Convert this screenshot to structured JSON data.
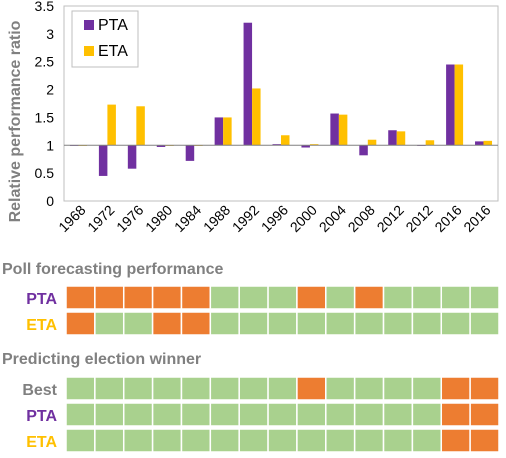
{
  "colors": {
    "pta": "#7030A0",
    "eta": "#FFC000",
    "hit": "#A9D18E",
    "miss": "#ED7D31",
    "best_label": "#808080",
    "section_title": "#808080"
  },
  "chart_data": {
    "type": "bar",
    "ylabel": "Relative performance ratio",
    "ylim": [
      0,
      3.5
    ],
    "baseline": 1,
    "yticks": [
      "0",
      "0.5",
      "1",
      "1.5",
      "2",
      "2.5",
      "3",
      "3.5"
    ],
    "ytick_values": [
      0,
      0.5,
      1,
      1.5,
      2,
      2.5,
      3,
      3.5
    ],
    "categories": [
      "1968",
      "1972",
      "1976",
      "1980",
      "1984",
      "1988",
      "1992",
      "1996",
      "2000",
      "2004",
      "2008",
      "2012",
      "2012",
      "2016",
      "2016"
    ],
    "legend_position": "top-left",
    "series": [
      {
        "name": "PTA",
        "values": [
          1.0,
          0.45,
          0.58,
          0.97,
          0.72,
          1.5,
          3.2,
          1.02,
          0.96,
          1.57,
          0.82,
          1.27,
          1.0,
          2.45,
          1.07
        ]
      },
      {
        "name": "ETA",
        "values": [
          1.0,
          1.73,
          1.7,
          1.0,
          1.0,
          1.5,
          2.02,
          1.18,
          1.02,
          1.55,
          1.1,
          1.25,
          1.09,
          2.45,
          1.08
        ]
      }
    ]
  },
  "poll_forecasting": {
    "title": "Poll forecasting performance",
    "rows": [
      {
        "label": "PTA",
        "cells": [
          "miss",
          "miss",
          "miss",
          "miss",
          "miss",
          "hit",
          "hit",
          "hit",
          "miss",
          "hit",
          "miss",
          "hit",
          "hit",
          "hit",
          "hit"
        ]
      },
      {
        "label": "ETA",
        "cells": [
          "miss",
          "hit",
          "hit",
          "miss",
          "miss",
          "hit",
          "hit",
          "hit",
          "hit",
          "hit",
          "hit",
          "hit",
          "hit",
          "hit",
          "hit"
        ]
      }
    ]
  },
  "election_winner": {
    "title": "Predicting election winner",
    "rows": [
      {
        "label": "Best",
        "cells": [
          "hit",
          "hit",
          "hit",
          "hit",
          "hit",
          "hit",
          "hit",
          "hit",
          "miss",
          "hit",
          "hit",
          "hit",
          "hit",
          "miss",
          "miss"
        ]
      },
      {
        "label": "PTA",
        "cells": [
          "hit",
          "hit",
          "hit",
          "hit",
          "hit",
          "hit",
          "hit",
          "hit",
          "hit",
          "hit",
          "hit",
          "hit",
          "hit",
          "miss",
          "miss"
        ]
      },
      {
        "label": "ETA",
        "cells": [
          "hit",
          "hit",
          "hit",
          "hit",
          "hit",
          "hit",
          "hit",
          "hit",
          "hit",
          "hit",
          "hit",
          "hit",
          "hit",
          "miss",
          "miss"
        ]
      }
    ]
  }
}
